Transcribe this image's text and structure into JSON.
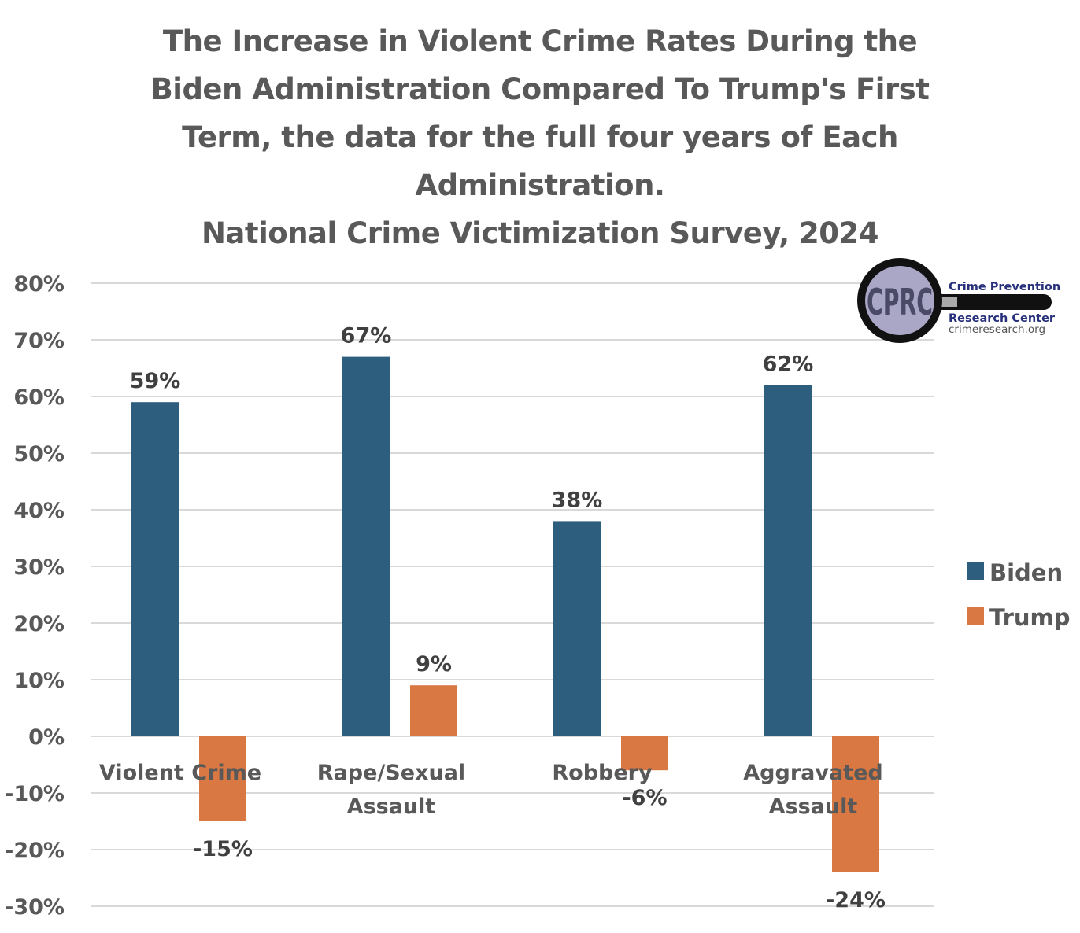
{
  "chart_data": {
    "type": "bar",
    "title_lines": [
      "The Increase in Violent Crime Rates During the",
      "Biden Administration Compared To Trump's First",
      "Term, the data for the full four years of Each",
      "Administration.",
      "National Crime Victimization Survey, 2024"
    ],
    "categories": [
      [
        "Violent Crime"
      ],
      [
        "Rape/Sexual",
        "Assault"
      ],
      [
        "Robbery"
      ],
      [
        "Aggravated",
        "Assault"
      ]
    ],
    "series": [
      {
        "name": "Biden",
        "color": "#2e5e7e",
        "values": [
          59,
          67,
          38,
          62
        ],
        "labels": [
          "59%",
          "67%",
          "38%",
          "62%"
        ]
      },
      {
        "name": "Trump",
        "color": "#d97843",
        "values": [
          -15,
          9,
          -6,
          -24
        ],
        "labels": [
          "-15%",
          "9%",
          "-6%",
          "-24%"
        ]
      }
    ],
    "xlabel": "",
    "ylabel": "",
    "ylim": [
      -30,
      80
    ],
    "yticks": [
      80,
      70,
      60,
      50,
      40,
      30,
      20,
      10,
      0,
      -10,
      -20,
      -30
    ],
    "ytick_labels": [
      "80%",
      "70%",
      "60%",
      "50%",
      "40%",
      "30%",
      "20%",
      "10%",
      "0%",
      "-10%",
      "-20%",
      "-30%"
    ],
    "grid": true,
    "legend_position": "right"
  },
  "logo": {
    "monogram": "CPRC",
    "line1": "Crime Prevention",
    "line2": "Research Center",
    "url": "crimeresearch.org"
  }
}
